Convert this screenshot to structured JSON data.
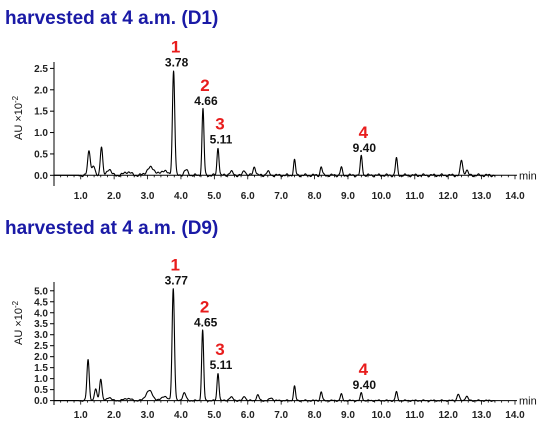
{
  "colors": {
    "title": "#1a1aa6",
    "peak_label": "#e81c1c",
    "trace": "#000000"
  },
  "chart_data": [
    {
      "type": "line",
      "title": "harvested at 4 a.m. (D1)",
      "xlabel": "min",
      "ylabel": "AU ×10",
      "ylabel_exponent": "-2",
      "xlim": [
        0.2,
        14.0
      ],
      "ylim": [
        -0.25,
        2.65
      ],
      "x_ticks": [
        "1.0",
        "2.0",
        "3.0",
        "4.0",
        "5.0",
        "6.0",
        "7.0",
        "8.0",
        "9.0",
        "10.0",
        "11.0",
        "12.0",
        "13.0",
        "14.0"
      ],
      "y_ticks": [
        "0.0",
        "0.5",
        "1.0",
        "1.5",
        "2.0",
        "2.5"
      ],
      "peaks": [
        {
          "x": 1.25,
          "y": 0.58,
          "w": 0.04
        },
        {
          "x": 1.38,
          "y": 0.22,
          "w": 0.04
        },
        {
          "x": 1.62,
          "y": 0.68,
          "w": 0.035
        },
        {
          "x": 1.85,
          "y": 0.15,
          "w": 0.06
        },
        {
          "x": 2.4,
          "y": 0.08,
          "w": 0.1
        },
        {
          "x": 3.1,
          "y": 0.18,
          "w": 0.12
        },
        {
          "x": 3.5,
          "y": 0.12,
          "w": 0.08
        },
        {
          "x": 3.78,
          "y": 2.45,
          "w": 0.035
        },
        {
          "x": 4.15,
          "y": 0.12,
          "w": 0.06
        },
        {
          "x": 4.66,
          "y": 1.55,
          "w": 0.03
        },
        {
          "x": 5.11,
          "y": 0.65,
          "w": 0.03
        },
        {
          "x": 5.5,
          "y": 0.08,
          "w": 0.06
        },
        {
          "x": 5.9,
          "y": 0.12,
          "w": 0.04
        },
        {
          "x": 6.2,
          "y": 0.2,
          "w": 0.04
        },
        {
          "x": 6.6,
          "y": 0.08,
          "w": 0.05
        },
        {
          "x": 7.4,
          "y": 0.35,
          "w": 0.03
        },
        {
          "x": 8.2,
          "y": 0.2,
          "w": 0.03
        },
        {
          "x": 8.8,
          "y": 0.18,
          "w": 0.03
        },
        {
          "x": 9.4,
          "y": 0.45,
          "w": 0.03
        },
        {
          "x": 10.45,
          "y": 0.4,
          "w": 0.03
        },
        {
          "x": 12.4,
          "y": 0.35,
          "w": 0.035
        },
        {
          "x": 12.55,
          "y": 0.12,
          "w": 0.04
        }
      ],
      "labeled_peaks": [
        {
          "num": "1",
          "rt": "3.78",
          "x": 3.78,
          "y": 2.45
        },
        {
          "num": "2",
          "rt": "4.66",
          "x": 4.66,
          "y": 1.55
        },
        {
          "num": "3",
          "rt": "5.11",
          "x": 5.11,
          "y": 0.65
        },
        {
          "num": "4",
          "rt": "9.40",
          "x": 9.4,
          "y": 0.45
        }
      ]
    },
    {
      "type": "line",
      "title": "harvested at 4 a.m. (D9)",
      "xlabel": "min",
      "ylabel": "AU ×10",
      "ylabel_exponent": "-2",
      "xlim": [
        0.2,
        14.0
      ],
      "ylim": [
        -0.2,
        5.4
      ],
      "x_ticks": [
        "1.0",
        "2.0",
        "3.0",
        "4.0",
        "5.0",
        "6.0",
        "7.0",
        "8.0",
        "9.0",
        "10.0",
        "11.0",
        "12.0",
        "13.0",
        "14.0"
      ],
      "y_ticks": [
        "0.0",
        "0.5",
        "1.0",
        "1.5",
        "2.0",
        "2.5",
        "3.0",
        "3.5",
        "4.0",
        "4.5",
        "5.0"
      ],
      "peaks": [
        {
          "x": 1.22,
          "y": 1.85,
          "w": 0.035
        },
        {
          "x": 1.45,
          "y": 0.5,
          "w": 0.04
        },
        {
          "x": 1.6,
          "y": 1.0,
          "w": 0.035
        },
        {
          "x": 1.85,
          "y": 0.15,
          "w": 0.06
        },
        {
          "x": 2.4,
          "y": 0.1,
          "w": 0.1
        },
        {
          "x": 3.05,
          "y": 0.45,
          "w": 0.1
        },
        {
          "x": 3.5,
          "y": 0.2,
          "w": 0.08
        },
        {
          "x": 3.77,
          "y": 5.1,
          "w": 0.035
        },
        {
          "x": 4.1,
          "y": 0.35,
          "w": 0.05
        },
        {
          "x": 4.65,
          "y": 3.2,
          "w": 0.03
        },
        {
          "x": 5.11,
          "y": 1.25,
          "w": 0.03
        },
        {
          "x": 5.5,
          "y": 0.15,
          "w": 0.06
        },
        {
          "x": 5.9,
          "y": 0.2,
          "w": 0.04
        },
        {
          "x": 6.3,
          "y": 0.25,
          "w": 0.04
        },
        {
          "x": 6.7,
          "y": 0.12,
          "w": 0.05
        },
        {
          "x": 7.4,
          "y": 0.65,
          "w": 0.03
        },
        {
          "x": 8.2,
          "y": 0.4,
          "w": 0.03
        },
        {
          "x": 8.8,
          "y": 0.3,
          "w": 0.03
        },
        {
          "x": 9.4,
          "y": 0.35,
          "w": 0.03
        },
        {
          "x": 10.45,
          "y": 0.4,
          "w": 0.03
        },
        {
          "x": 12.3,
          "y": 0.3,
          "w": 0.035
        },
        {
          "x": 12.55,
          "y": 0.2,
          "w": 0.04
        }
      ],
      "labeled_peaks": [
        {
          "num": "1",
          "rt": "3.77",
          "x": 3.77,
          "y": 5.1
        },
        {
          "num": "2",
          "rt": "4.65",
          "x": 4.65,
          "y": 3.2
        },
        {
          "num": "3",
          "rt": "5.11",
          "x": 5.11,
          "y": 1.25
        },
        {
          "num": "4",
          "rt": "9.40",
          "x": 9.4,
          "y": 0.35
        }
      ]
    }
  ]
}
